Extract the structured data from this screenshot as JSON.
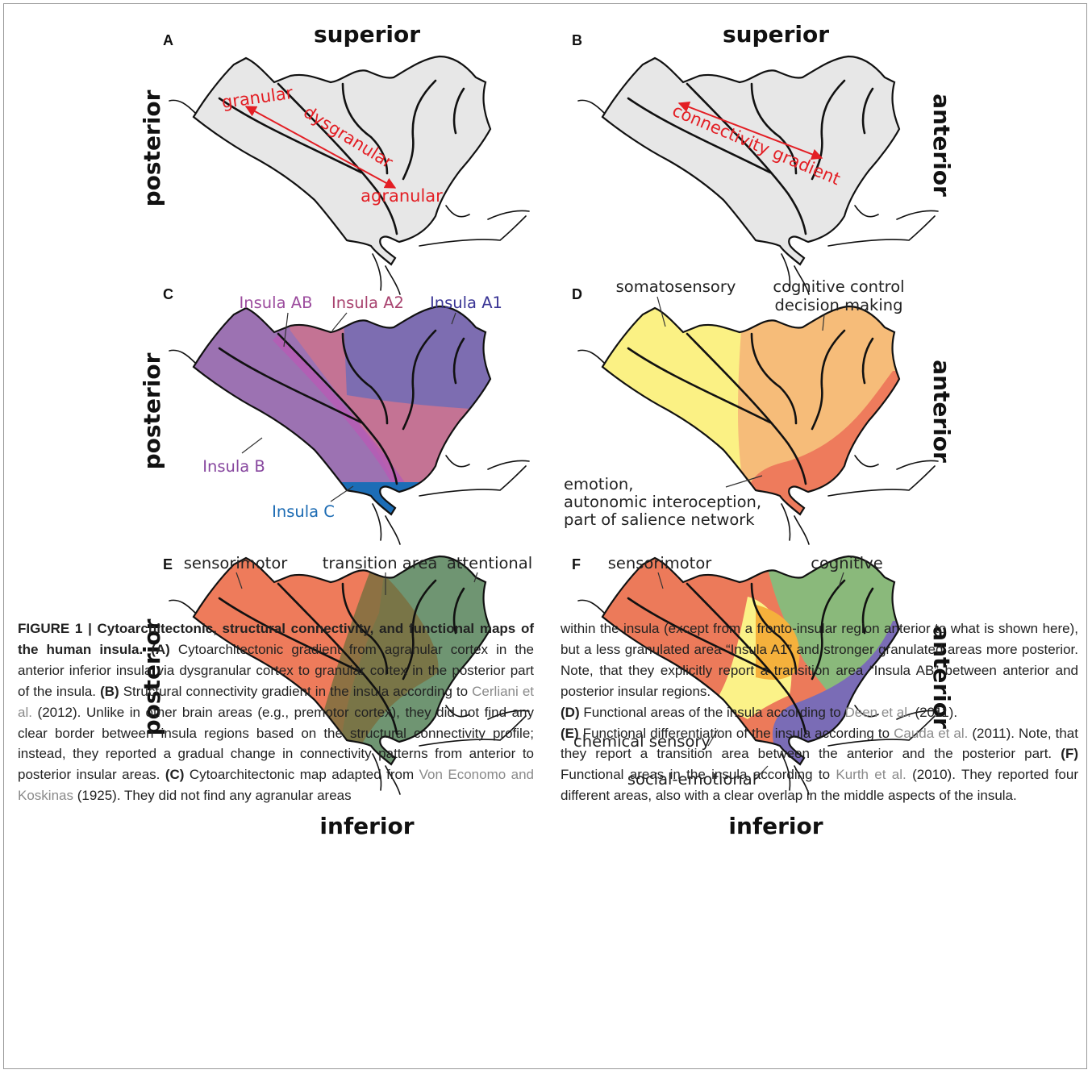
{
  "figure": {
    "panels": [
      {
        "letter": "A",
        "top": "superior",
        "left": "posterior",
        "labels": [
          "granular",
          "dysgranular",
          "agranular"
        ]
      },
      {
        "letter": "B",
        "top": "superior",
        "right": "anterior",
        "labels": [
          "connectivity gradient"
        ]
      },
      {
        "letter": "C",
        "left": "posterior",
        "labels": [
          "Insula AB",
          "Insula A2",
          "Insula A1",
          "Insula B",
          "Insula C"
        ]
      },
      {
        "letter": "D",
        "right": "anterior",
        "labels": [
          "somatosensory",
          "cognitive control",
          "decision making",
          "emotion,",
          "autonomic interoception,",
          "part of salience network"
        ]
      },
      {
        "letter": "E",
        "left": "posterior",
        "bottom": "inferior",
        "labels": [
          "sensorimotor",
          "transition area",
          "attentional"
        ]
      },
      {
        "letter": "F",
        "right": "anterior",
        "bottom": "inferior",
        "labels": [
          "sensorimotor",
          "cognitive",
          "chemical sensory",
          "social-emotional"
        ]
      }
    ]
  },
  "caption": {
    "columns": [
      [
        [
          {
            "text": "FIGURE 1 | Cytoarchitectonic, structural connectivity, and functional maps of the human insula. (A)",
            "bold": true
          },
          {
            "text": " Cytoarchitectonic gradient from agranular cortex in the anterior inferior insula via dysgranular cortex to granular cortex in the posterior part of the insula. "
          },
          {
            "text": "(B)",
            "bold": true
          },
          {
            "text": " Structural connectivity gradient in the insula according to "
          },
          {
            "text": "Cerliani et al.",
            "ref": true
          },
          {
            "text": " (2012). Unlike in other brain areas (e.g., premotor cortex), they did not find any clear border between insula regions based on the structural connectivity profile; instead, they reported a gradual change in connectivity patterns from anterior to posterior insular areas. "
          },
          {
            "text": "(C)",
            "bold": true
          },
          {
            "text": " Cytoarchitectonic map adapted from "
          },
          {
            "text": "Von Economo and Koskinas",
            "ref": true
          },
          {
            "text": " (1925). They did not find any agranular areas"
          }
        ]
      ],
      [
        [
          {
            "text": "within the insula (except from a fronto-insular region anterior to what is shown here), but a less granulated area “Insula A1” and stronger granulated areas more posterior. Note, that they explicitly report a transition area “Insula AB” between anterior and posterior insular regions."
          }
        ],
        [
          {
            "text": "(D)",
            "bold": true
          },
          {
            "text": " Functional areas of the insula according to "
          },
          {
            "text": "Deen et al.",
            "ref": true
          },
          {
            "text": " (2011)."
          }
        ],
        [
          {
            "text": "(E)",
            "bold": true
          },
          {
            "text": " Functional differentiation of the insula according to "
          },
          {
            "text": "Cauda et al.",
            "ref": true
          },
          {
            "text": " (2011). Note, that they report a transition area between the anterior and the posterior part. "
          },
          {
            "text": "(F)",
            "bold": true
          },
          {
            "text": " Functional areas in the insula according to "
          },
          {
            "text": "Kurth et al.",
            "ref": true
          },
          {
            "text": " (2010). They reported four different areas, also with a clear overlap in the middle aspects of the insula."
          }
        ]
      ]
    ]
  }
}
